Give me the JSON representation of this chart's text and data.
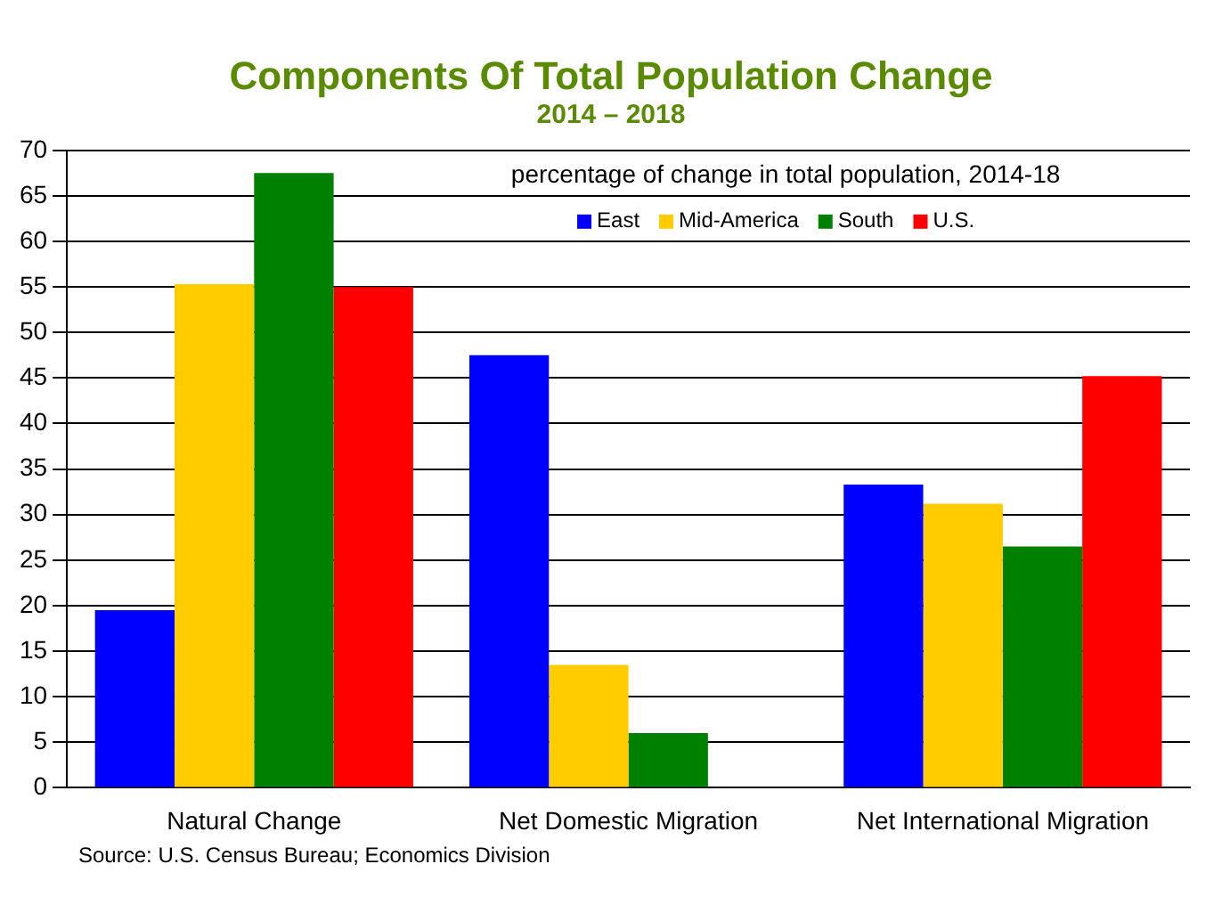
{
  "chart_data": {
    "type": "bar",
    "title": "Components Of Total Population Change",
    "subtitle": "2014 – 2018",
    "categories": [
      "Natural Change",
      "Net Domestic Migration",
      "Net International Migration"
    ],
    "series": [
      {
        "name": "East",
        "color": "#0000ff",
        "values": [
          19.5,
          47.5,
          33.3
        ]
      },
      {
        "name": "Mid-America",
        "color": "#ffcc00",
        "values": [
          55.3,
          13.5,
          31.2
        ]
      },
      {
        "name": "South",
        "color": "#008000",
        "values": [
          67.5,
          6,
          26.5
        ]
      },
      {
        "name": "U.S.",
        "color": "#ff0000",
        "values": [
          55,
          null,
          45.2
        ]
      }
    ],
    "ylim": [
      0,
      70
    ],
    "yticks": [
      0,
      5,
      10,
      15,
      20,
      25,
      30,
      35,
      40,
      45,
      50,
      55,
      60,
      65,
      70
    ],
    "grid": "y",
    "legend": "top",
    "annotations": [
      "percentage of change in total population, 2014-18",
      "Source: U.S. Census Bureau; Economics Division"
    ]
  }
}
